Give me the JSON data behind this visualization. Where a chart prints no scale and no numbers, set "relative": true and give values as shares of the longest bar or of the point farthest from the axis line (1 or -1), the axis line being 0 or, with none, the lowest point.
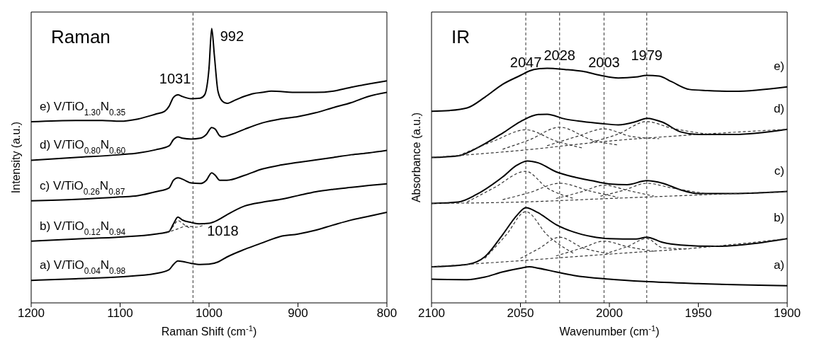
{
  "chart_data": [
    {
      "type": "line",
      "title": "Raman",
      "xlabel": "Raman Shift (cm$^{-1}$)",
      "ylabel": "Intensity (a.u.)",
      "relative": true,
      "xlim": [
        1200,
        800
      ],
      "xticks": [
        1200,
        1100,
        1000,
        900,
        800
      ],
      "legend": false,
      "grid": false,
      "marker": "none",
      "line_style": "solid",
      "ref_lines": [
        {
          "axis": "x",
          "value": 1018,
          "label": "1018",
          "color": "#555555",
          "line_style": "dashed"
        }
      ],
      "annotations": [
        {
          "text": "1031",
          "x": 1035,
          "y": 0.758
        },
        {
          "text": "992",
          "x": 997,
          "y": 1
        }
      ],
      "series": [
        {
          "name": "e) V/TiO$_{1.30}$N$_{0.35}$",
          "color": "#000000",
          "x": [
            1200,
            1150,
            1120,
            1100,
            1080,
            1060,
            1050,
            1045,
            1040,
            1035,
            1030,
            1020,
            1010,
            1005,
            1000,
            997,
            994,
            990,
            985,
            980,
            970,
            960,
            950,
            940,
            930,
            900,
            880,
            860,
            840,
            820,
            800
          ],
          "values": [
            0.66,
            0.665,
            0.665,
            0.662,
            0.67,
            0.688,
            0.698,
            0.716,
            0.749,
            0.758,
            0.752,
            0.744,
            0.746,
            0.758,
            0.856,
            1,
            0.902,
            0.772,
            0.735,
            0.727,
            0.74,
            0.753,
            0.763,
            0.767,
            0.772,
            0.767,
            0.767,
            0.772,
            0.786,
            0.798,
            0.809
          ]
        },
        {
          "name": "d) V/TiO$_{0.80}$N$_{0.60}$",
          "color": "#000000",
          "x": [
            1200,
            1150,
            1100,
            1080,
            1060,
            1045,
            1040,
            1035,
            1030,
            1020,
            1010,
            1003,
            997,
            993,
            988,
            985,
            975,
            960,
            940,
            920,
            900,
            880,
            860,
            840,
            820,
            800
          ],
          "values": [
            0.52,
            0.53,
            0.54,
            0.546,
            0.558,
            0.572,
            0.595,
            0.605,
            0.6,
            0.597,
            0.6,
            0.614,
            0.639,
            0.633,
            0.609,
            0.605,
            0.614,
            0.633,
            0.656,
            0.67,
            0.679,
            0.693,
            0.712,
            0.73,
            0.753,
            0.767
          ]
        },
        {
          "name": "c) V/TiO$_{0.26}$N$_{0.87}$",
          "color": "#000000",
          "x": [
            1200,
            1150,
            1100,
            1080,
            1060,
            1045,
            1040,
            1035,
            1030,
            1020,
            1010,
            1003,
            997,
            993,
            988,
            980,
            960,
            940,
            920,
            900,
            880,
            860,
            840,
            820,
            800
          ],
          "values": [
            0.372,
            0.377,
            0.386,
            0.391,
            0.405,
            0.419,
            0.447,
            0.456,
            0.451,
            0.437,
            0.435,
            0.447,
            0.474,
            0.465,
            0.447,
            0.447,
            0.465,
            0.488,
            0.502,
            0.512,
            0.521,
            0.53,
            0.54,
            0.547,
            0.556
          ]
        },
        {
          "name": "b) V/TiO$_{0.12}$N$_{0.94}$",
          "color": "#000000",
          "x": [
            1200,
            1150,
            1100,
            1060,
            1045,
            1040,
            1035,
            1030,
            1020,
            1010,
            1000,
            990,
            980,
            960,
            940,
            920,
            900,
            880,
            860,
            840,
            820,
            800
          ],
          "values": [
            0.225,
            0.233,
            0.24,
            0.251,
            0.26,
            0.288,
            0.313,
            0.302,
            0.293,
            0.288,
            0.29,
            0.302,
            0.321,
            0.353,
            0.367,
            0.377,
            0.391,
            0.405,
            0.414,
            0.421,
            0.428,
            0.434
          ]
        },
        {
          "color": "#333333",
          "line_style": "dashed",
          "x": [
            1045,
            1040,
            1035,
            1030,
            1025,
            1020
          ],
          "values": [
            0.26,
            0.28,
            0.3,
            0.29,
            0.278,
            0.272
          ]
        },
        {
          "color": "#333333",
          "line_style": "dashed",
          "x": [
            1048,
            1035,
            1025,
            1015,
            1005
          ],
          "values": [
            0.255,
            0.27,
            0.28,
            0.276,
            0.285
          ]
        },
        {
          "name": "a) V/TiO$_{0.04}$N$_{0.98}$",
          "color": "#000000",
          "x": [
            1200,
            1150,
            1100,
            1060,
            1045,
            1040,
            1035,
            1030,
            1020,
            1010,
            1000,
            990,
            980,
            960,
            940,
            920,
            900,
            880,
            860,
            840,
            820,
            800
          ],
          "values": [
            0.082,
            0.088,
            0.095,
            0.107,
            0.121,
            0.14,
            0.153,
            0.151,
            0.144,
            0.14,
            0.141,
            0.149,
            0.167,
            0.195,
            0.219,
            0.242,
            0.251,
            0.265,
            0.284,
            0.302,
            0.316,
            0.33
          ]
        }
      ]
    },
    {
      "type": "line",
      "title": "IR",
      "xlabel": "Wavenumber (cm$^{-1}$)",
      "ylabel": "Absorbance (a.u.)",
      "relative": true,
      "xlim": [
        2100,
        1900
      ],
      "xticks": [
        2100,
        2050,
        2000,
        1950,
        1900
      ],
      "legend": false,
      "grid": false,
      "marker": "none",
      "line_style": "solid",
      "ref_lines": [
        {
          "axis": "x",
          "value": 2047,
          "label": "2047",
          "color": "#555555",
          "line_style": "dashed"
        },
        {
          "axis": "x",
          "value": 2028,
          "label": "2028",
          "color": "#555555",
          "line_style": "dashed"
        },
        {
          "axis": "x",
          "value": 2003,
          "label": "2003",
          "color": "#555555",
          "line_style": "dashed"
        },
        {
          "axis": "x",
          "value": 1979,
          "label": "1979",
          "color": "#555555",
          "line_style": "dashed"
        }
      ],
      "series": [
        {
          "name": "e)",
          "color": "#000000",
          "x": [
            2100,
            2090,
            2080,
            2070,
            2060,
            2050,
            2045,
            2040,
            2035,
            2025,
            2015,
            2005,
            1995,
            1985,
            1979,
            1972,
            1965,
            1955,
            1945,
            1930,
            1900
          ],
          "values": [
            0.817,
            0.82,
            0.831,
            0.877,
            0.932,
            0.97,
            0.989,
            0.998,
            1,
            0.995,
            0.987,
            0.97,
            0.959,
            0.963,
            0.97,
            0.967,
            0.943,
            0.91,
            0.905,
            0.902,
            0.921
          ]
        },
        {
          "name": "d)",
          "color": "#000000",
          "x": [
            2100,
            2085,
            2075,
            2060,
            2050,
            2040,
            2035,
            2025,
            2015,
            2005,
            1995,
            1985,
            1979,
            1970,
            1960,
            1950,
            1930,
            1900
          ],
          "values": [
            0.62,
            0.627,
            0.658,
            0.724,
            0.773,
            0.803,
            0.804,
            0.784,
            0.773,
            0.765,
            0.759,
            0.773,
            0.787,
            0.77,
            0.729,
            0.718,
            0.718,
            0.74
          ]
        },
        {
          "color": "#333333",
          "line_style": "dashed",
          "x": [
            2100,
            2050,
            2000,
            1950,
            1900
          ],
          "values": [
            0.62,
            0.65,
            0.69,
            0.718,
            0.74
          ]
        },
        {
          "color": "#333333",
          "line_style": "dashed",
          "x": [
            2085,
            2065,
            2047,
            2030,
            2015
          ],
          "values": [
            0.627,
            0.69,
            0.738,
            0.69,
            0.66
          ]
        },
        {
          "color": "#333333",
          "line_style": "dashed",
          "x": [
            2060,
            2045,
            2028,
            2010,
            1995
          ],
          "values": [
            0.655,
            0.695,
            0.749,
            0.695,
            0.673
          ]
        },
        {
          "color": "#333333",
          "line_style": "dashed",
          "x": [
            2035,
            2018,
            2003,
            1988,
            1972
          ],
          "values": [
            0.67,
            0.71,
            0.742,
            0.71,
            0.7
          ]
        },
        {
          "color": "#333333",
          "line_style": "dashed",
          "x": [
            2010,
            1995,
            1979,
            1965,
            1945
          ],
          "values": [
            0.685,
            0.72,
            0.773,
            0.745,
            0.72
          ]
        },
        {
          "name": "c)",
          "color": "#000000",
          "x": [
            2100,
            2085,
            2075,
            2060,
            2052,
            2046,
            2040,
            2030,
            2020,
            2010,
            2000,
            1990,
            1979,
            1970,
            1960,
            1950,
            1930,
            1900
          ],
          "values": [
            0.424,
            0.43,
            0.461,
            0.537,
            0.587,
            0.605,
            0.597,
            0.559,
            0.537,
            0.521,
            0.507,
            0.504,
            0.521,
            0.51,
            0.482,
            0.466,
            0.466,
            0.475
          ]
        },
        {
          "color": "#333333",
          "line_style": "dashed",
          "x": [
            2100,
            2050,
            2000,
            1950,
            1900
          ],
          "values": [
            0.424,
            0.43,
            0.445,
            0.46,
            0.475
          ]
        },
        {
          "color": "#333333",
          "line_style": "dashed",
          "x": [
            2080,
            2065,
            2047,
            2035,
            2020
          ],
          "values": [
            0.43,
            0.49,
            0.561,
            0.49,
            0.445
          ]
        },
        {
          "color": "#333333",
          "line_style": "dashed",
          "x": [
            2060,
            2045,
            2028,
            2010,
            1995
          ],
          "values": [
            0.44,
            0.47,
            0.51,
            0.475,
            0.45
          ]
        },
        {
          "color": "#333333",
          "line_style": "dashed",
          "x": [
            2030,
            2015,
            2003,
            1990,
            1975
          ],
          "values": [
            0.445,
            0.475,
            0.502,
            0.48,
            0.455
          ]
        },
        {
          "color": "#333333",
          "line_style": "dashed",
          "x": [
            2005,
            1992,
            1979,
            1965,
            1945
          ],
          "values": [
            0.455,
            0.48,
            0.51,
            0.49,
            0.465
          ]
        },
        {
          "name": "b)",
          "color": "#000000",
          "x": [
            2100,
            2080,
            2070,
            2060,
            2052,
            2047,
            2040,
            2030,
            2020,
            2010,
            2000,
            1985,
            1979,
            1970,
            1960,
            1940,
            1920,
            1900
          ],
          "values": [
            0.154,
            0.164,
            0.197,
            0.291,
            0.373,
            0.406,
            0.384,
            0.334,
            0.302,
            0.283,
            0.274,
            0.272,
            0.28,
            0.258,
            0.247,
            0.241,
            0.252,
            0.274
          ]
        },
        {
          "color": "#333333",
          "line_style": "dashed",
          "x": [
            2100,
            2050,
            2000,
            1950,
            1900
          ],
          "values": [
            0.154,
            0.18,
            0.208,
            0.235,
            0.274
          ]
        },
        {
          "color": "#333333",
          "line_style": "dashed",
          "x": [
            2070,
            2058,
            2047,
            2035,
            2020
          ],
          "values": [
            0.19,
            0.29,
            0.389,
            0.29,
            0.21
          ]
        },
        {
          "color": "#333333",
          "line_style": "dashed",
          "x": [
            2050,
            2040,
            2028,
            2015,
            2000
          ],
          "values": [
            0.19,
            0.23,
            0.28,
            0.235,
            0.21
          ]
        },
        {
          "color": "#333333",
          "line_style": "dashed",
          "x": [
            2030,
            2015,
            2003,
            1990,
            1975
          ],
          "values": [
            0.2,
            0.235,
            0.263,
            0.24,
            0.22
          ]
        },
        {
          "color": "#333333",
          "line_style": "dashed",
          "x": [
            2000,
            1990,
            1979,
            1970,
            1955
          ],
          "values": [
            0.215,
            0.24,
            0.274,
            0.235,
            0.23
          ]
        },
        {
          "name": "a)",
          "color": "#000000",
          "x": [
            2100,
            2080,
            2070,
            2060,
            2050,
            2045,
            2040,
            2030,
            2020,
            2000,
            1980,
            1950,
            1900
          ],
          "values": [
            0.101,
            0.099,
            0.11,
            0.132,
            0.148,
            0.154,
            0.148,
            0.132,
            0.117,
            0.101,
            0.091,
            0.082,
            0.073
          ]
        }
      ]
    }
  ]
}
